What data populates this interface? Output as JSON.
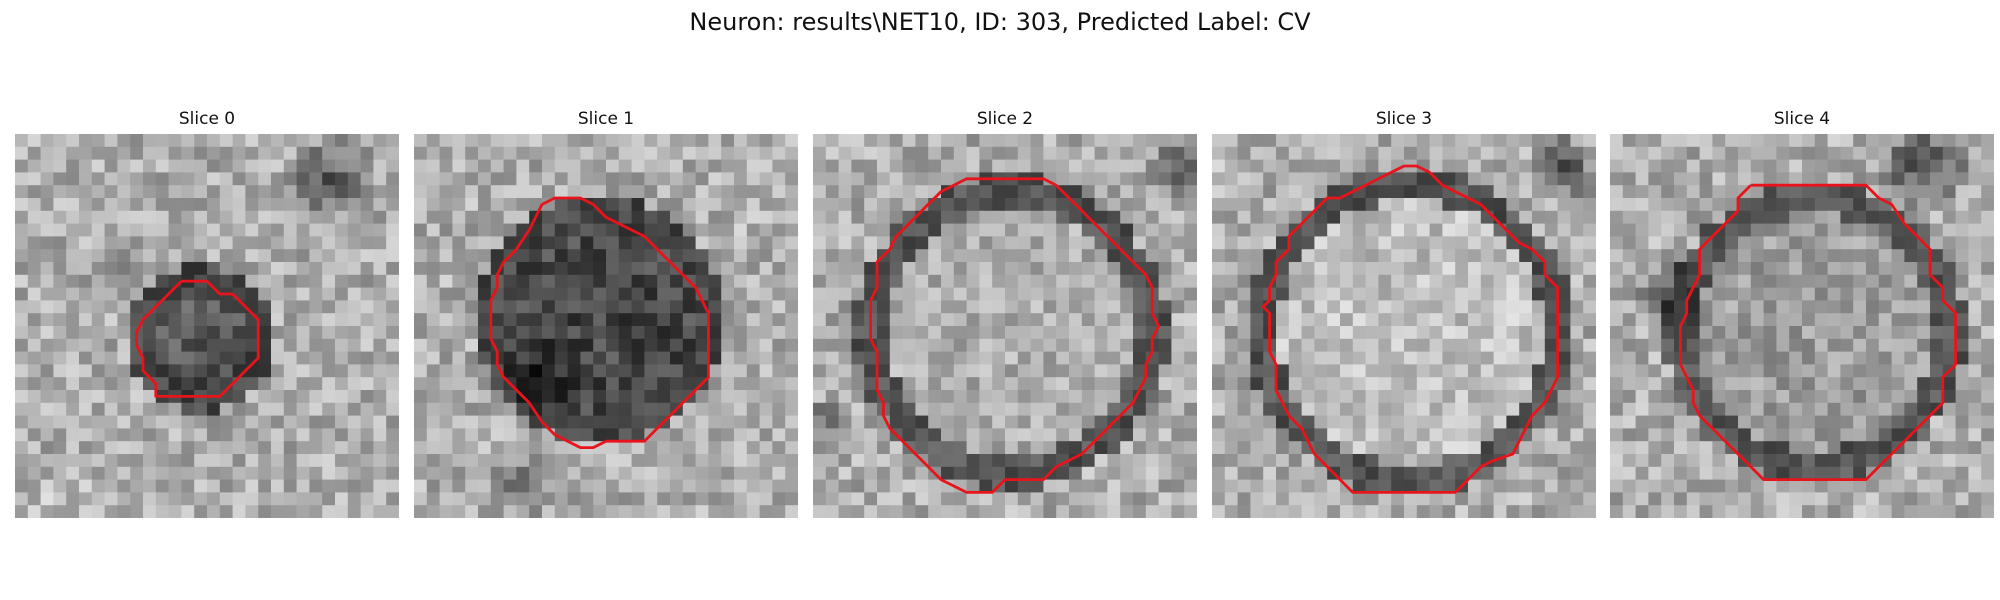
{
  "figure": {
    "title": "Neuron: results\\NET10, ID: 303, Predicted Label: CV"
  },
  "colors": {
    "contour": "#e8141b",
    "background": "#ffffff"
  },
  "slices": [
    {
      "title": "Slice 0"
    },
    {
      "title": "Slice 1"
    },
    {
      "title": "Slice 2"
    },
    {
      "title": "Slice 3"
    },
    {
      "title": "Slice 4"
    }
  ]
}
